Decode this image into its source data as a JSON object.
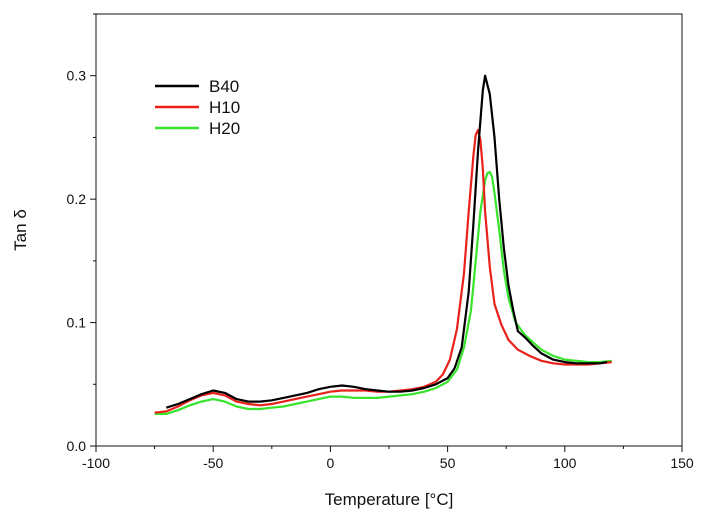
{
  "chart_data": {
    "type": "line",
    "title": "",
    "xlabel": "Temperature [°C]",
    "ylabel": "Tan δ",
    "xlim": [
      -100,
      150
    ],
    "ylim": [
      0.0,
      0.35
    ],
    "xticks": [
      -100,
      -50,
      0,
      50,
      100,
      150
    ],
    "yticks": [
      0.0,
      0.1,
      0.2,
      0.3
    ],
    "xtick_labels": [
      "-100",
      "-50",
      "0",
      "50",
      "100",
      "150"
    ],
    "ytick_labels": [
      "0.0",
      "0.1",
      "0.2",
      "0.3"
    ],
    "grid": false,
    "legend_position": "top-left",
    "series": [
      {
        "name": "B40",
        "color": "#000000",
        "x": [
          -70,
          -65,
          -60,
          -55,
          -50,
          -45,
          -40,
          -35,
          -30,
          -25,
          -20,
          -15,
          -10,
          -5,
          0,
          5,
          10,
          15,
          20,
          25,
          30,
          35,
          40,
          45,
          50,
          53,
          56,
          59,
          61,
          63,
          65,
          66,
          68,
          70,
          72,
          74,
          76,
          78,
          80,
          83,
          86,
          90,
          95,
          100,
          105,
          110,
          115,
          118
        ],
        "y": [
          0.031,
          0.034,
          0.038,
          0.042,
          0.045,
          0.043,
          0.038,
          0.036,
          0.036,
          0.037,
          0.039,
          0.041,
          0.043,
          0.046,
          0.048,
          0.049,
          0.048,
          0.046,
          0.045,
          0.044,
          0.044,
          0.045,
          0.047,
          0.05,
          0.055,
          0.063,
          0.08,
          0.125,
          0.18,
          0.24,
          0.288,
          0.3,
          0.285,
          0.25,
          0.2,
          0.16,
          0.13,
          0.11,
          0.093,
          0.088,
          0.082,
          0.075,
          0.07,
          0.068,
          0.067,
          0.067,
          0.067,
          0.068
        ]
      },
      {
        "name": "H10",
        "color": "#e8211b",
        "x": [
          -75,
          -70,
          -65,
          -60,
          -55,
          -50,
          -45,
          -40,
          -35,
          -30,
          -25,
          -20,
          -15,
          -10,
          -5,
          0,
          5,
          10,
          15,
          20,
          25,
          30,
          35,
          40,
          45,
          48,
          51,
          54,
          57,
          59,
          61,
          62,
          63,
          64,
          65,
          66,
          68,
          70,
          73,
          76,
          80,
          85,
          90,
          95,
          100,
          105,
          110,
          115,
          120
        ],
        "y": [
          0.027,
          0.028,
          0.032,
          0.037,
          0.041,
          0.043,
          0.041,
          0.036,
          0.034,
          0.033,
          0.034,
          0.036,
          0.038,
          0.04,
          0.042,
          0.044,
          0.045,
          0.045,
          0.045,
          0.044,
          0.044,
          0.045,
          0.046,
          0.048,
          0.052,
          0.058,
          0.07,
          0.095,
          0.14,
          0.19,
          0.235,
          0.252,
          0.256,
          0.248,
          0.225,
          0.19,
          0.145,
          0.115,
          0.098,
          0.086,
          0.078,
          0.073,
          0.069,
          0.067,
          0.066,
          0.066,
          0.066,
          0.067,
          0.068
        ]
      },
      {
        "name": "H20",
        "color": "#38e32c",
        "x": [
          -75,
          -70,
          -65,
          -60,
          -55,
          -50,
          -45,
          -40,
          -35,
          -30,
          -25,
          -20,
          -15,
          -10,
          -5,
          0,
          5,
          10,
          15,
          20,
          25,
          30,
          35,
          40,
          45,
          50,
          54,
          57,
          60,
          62,
          64,
          66,
          67,
          68,
          69,
          70,
          72,
          74,
          76,
          79,
          83,
          87,
          90,
          95,
          100,
          105,
          110,
          115,
          120
        ],
        "y": [
          0.026,
          0.026,
          0.029,
          0.033,
          0.036,
          0.038,
          0.036,
          0.032,
          0.03,
          0.03,
          0.031,
          0.032,
          0.034,
          0.036,
          0.038,
          0.04,
          0.04,
          0.039,
          0.039,
          0.039,
          0.04,
          0.041,
          0.042,
          0.044,
          0.047,
          0.052,
          0.062,
          0.08,
          0.11,
          0.15,
          0.19,
          0.215,
          0.221,
          0.222,
          0.218,
          0.205,
          0.175,
          0.142,
          0.12,
          0.1,
          0.09,
          0.083,
          0.078,
          0.073,
          0.07,
          0.069,
          0.068,
          0.068,
          0.069
        ]
      }
    ]
  }
}
